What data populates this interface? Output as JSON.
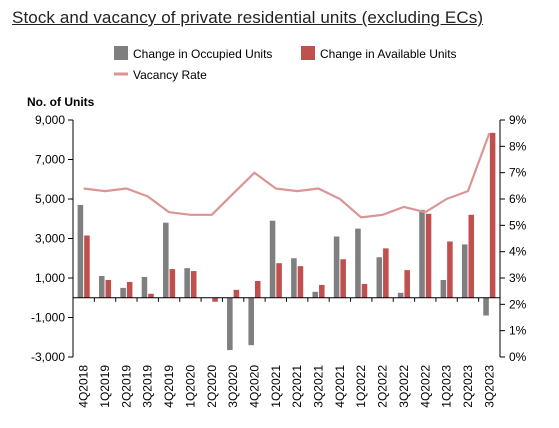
{
  "chart_data": {
    "type": "bar",
    "title": "Stock and vacancy of private residential units (excluding ECs)",
    "ylabel": "No. of Units",
    "categories": [
      "4Q2018",
      "1Q2019",
      "2Q2019",
      "3Q2019",
      "4Q2019",
      "1Q2020",
      "2Q2020",
      "3Q2020",
      "4Q2020",
      "1Q2021",
      "2Q2021",
      "3Q2021",
      "4Q2021",
      "1Q2022",
      "2Q2022",
      "3Q2022",
      "4Q2022",
      "1Q2023",
      "2Q2023",
      "3Q2023"
    ],
    "ylim": [
      -3000,
      9000
    ],
    "yticks": [
      "9,000",
      "7,000",
      "5,000",
      "3,000",
      "1,000",
      "-1,000",
      "-3,000"
    ],
    "y2lim": [
      0,
      9
    ],
    "y2ticks": [
      "9%",
      "8%",
      "7%",
      "6%",
      "5%",
      "4%",
      "3%",
      "2%",
      "1%",
      "0%"
    ],
    "legend_placement": "top",
    "series": [
      {
        "name": "Change in Occupied Units",
        "type": "bar",
        "color": "#7f7f7f",
        "values": [
          4700,
          1100,
          500,
          1050,
          3800,
          1500,
          0,
          -2650,
          -2400,
          3900,
          2000,
          300,
          3100,
          3500,
          2050,
          250,
          4450,
          900,
          2700,
          -900
        ]
      },
      {
        "name": "Change in Available Units",
        "type": "bar",
        "color": "#c0504d",
        "values": [
          3150,
          900,
          800,
          200,
          1450,
          1350,
          -200,
          400,
          850,
          1750,
          1600,
          650,
          1950,
          700,
          2500,
          1400,
          4250,
          2850,
          4200,
          8350
        ]
      },
      {
        "name": "Vacancy Rate",
        "type": "line",
        "axis": "secondary",
        "color": "#d99694",
        "values": [
          6.4,
          6.3,
          6.4,
          6.1,
          5.5,
          5.4,
          5.4,
          6.2,
          7.0,
          6.4,
          6.3,
          6.4,
          6.0,
          5.3,
          5.4,
          5.7,
          5.5,
          6.0,
          6.3,
          8.5
        ]
      }
    ]
  }
}
